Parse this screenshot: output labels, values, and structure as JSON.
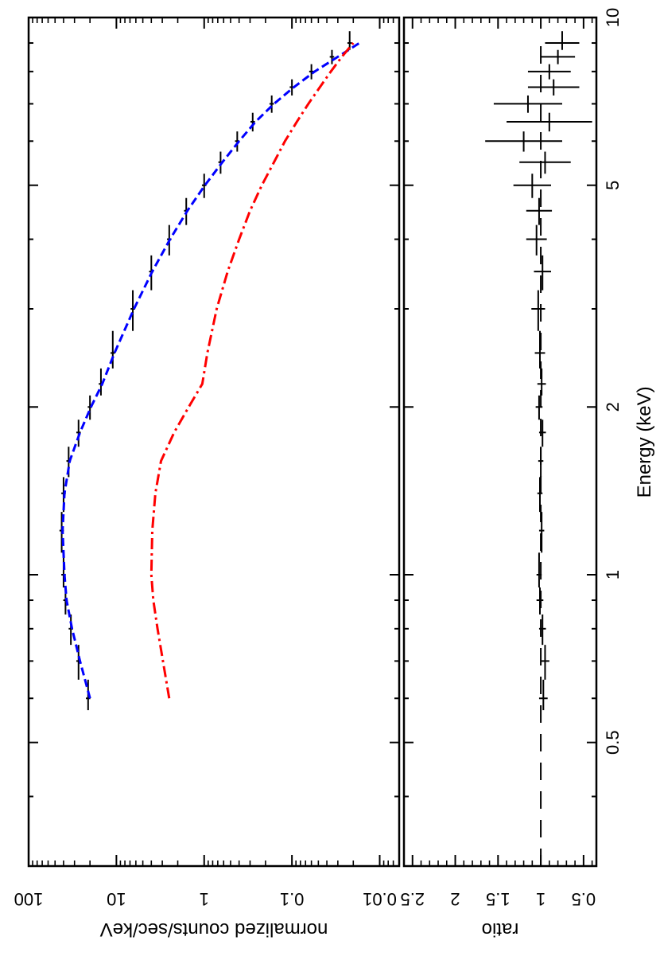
{
  "chart_data": [
    {
      "type": "scatter",
      "xlabel": "Energy (keV)",
      "ylabel": "normalized counts/sec/keV",
      "x_scale": "log",
      "y_scale": "log",
      "xlim": [
        0.3,
        10
      ],
      "ylim": [
        0.006,
        100
      ],
      "x_ticks": [
        0.5,
        1,
        2,
        5,
        10
      ],
      "x_tick_labels": [
        "0.5",
        "1",
        "2",
        "5",
        "10"
      ],
      "y_ticks": [
        100,
        10,
        1,
        0.1,
        0.01
      ],
      "y_tick_labels": [
        "100",
        "10",
        "1",
        "0.1",
        "0.01"
      ],
      "series": [
        {
          "kind": "data",
          "color": "#000000",
          "style": "crosses",
          "x": [
            0.6,
            0.7,
            0.8,
            0.9,
            1.0,
            1.2,
            1.4,
            1.6,
            1.8,
            2.0,
            2.2,
            2.5,
            3.0,
            3.5,
            4.0,
            4.5,
            5.0,
            5.5,
            6.0,
            6.5,
            7.0,
            7.5,
            8.0,
            8.5,
            9.0
          ],
          "y": [
            21,
            27,
            33,
            38,
            40,
            42,
            40,
            35,
            27,
            20,
            15,
            11,
            6.5,
            4.0,
            2.5,
            1.6,
            1.0,
            0.65,
            0.42,
            0.28,
            0.17,
            0.1,
            0.06,
            0.035,
            0.022
          ]
        },
        {
          "kind": "model",
          "color": "#0000ff",
          "style": "dash",
          "x": [
            0.6,
            0.7,
            0.8,
            0.9,
            1.0,
            1.2,
            1.4,
            1.6,
            1.8,
            2.0,
            2.2,
            2.5,
            3.0,
            3.5,
            4.0,
            4.5,
            5.0,
            5.5,
            6.0,
            6.5,
            7.0,
            7.5,
            8.0,
            8.5,
            9.0
          ],
          "y": [
            20,
            26,
            32,
            37,
            39,
            41,
            39,
            34,
            26,
            19.5,
            14.5,
            10.5,
            6.3,
            3.9,
            2.45,
            1.55,
            0.98,
            0.62,
            0.4,
            0.26,
            0.16,
            0.095,
            0.055,
            0.03,
            0.017
          ]
        },
        {
          "kind": "model-component",
          "color": "#ff0000",
          "style": "dash-dot",
          "x": [
            0.6,
            0.7,
            0.8,
            0.9,
            1.0,
            1.2,
            1.4,
            1.6,
            1.8,
            2.0,
            2.2,
            2.5,
            3.0,
            3.5,
            4.0,
            4.5,
            5.0,
            5.5,
            6.0,
            6.5,
            7.0,
            7.5,
            8.0,
            8.5,
            9.0
          ],
          "y": [
            2.5,
            2.95,
            3.4,
            3.8,
            4.0,
            3.9,
            3.6,
            3.1,
            2.2,
            1.5,
            1.05,
            0.92,
            0.72,
            0.54,
            0.4,
            0.3,
            0.22,
            0.16,
            0.12,
            0.088,
            0.065,
            0.048,
            0.036,
            0.027,
            0.02
          ]
        }
      ]
    },
    {
      "type": "scatter",
      "xlabel": "Energy (keV)",
      "ylabel": "ratio",
      "x_scale": "log",
      "xlim": [
        0.3,
        10
      ],
      "ylim": [
        0.35,
        2.6
      ],
      "x_ticks": [
        0.5,
        1,
        2,
        5,
        10
      ],
      "x_tick_labels": [
        "0.5",
        "1",
        "2",
        "5",
        "10"
      ],
      "y_ticks": [
        0.5,
        1,
        1.5,
        2,
        2.5
      ],
      "y_tick_labels": [
        "0.5",
        "1",
        "1.5",
        "2",
        "2.5"
      ],
      "reference_line": 1,
      "series": [
        {
          "kind": "ratio",
          "color": "#000000",
          "style": "crosses",
          "x": [
            0.6,
            0.7,
            0.8,
            0.9,
            1.0,
            1.2,
            1.4,
            1.6,
            1.8,
            2.0,
            2.2,
            2.5,
            3.0,
            3.5,
            4.0,
            4.5,
            5.0,
            5.5,
            6.0,
            6.5,
            7.0,
            7.5,
            8.0,
            8.5,
            9.0
          ],
          "y": [
            0.97,
            0.95,
            0.98,
            1.01,
            1.02,
            0.99,
            1.01,
            1.0,
            0.98,
            1.02,
            0.99,
            1.01,
            1.03,
            0.98,
            1.05,
            1.02,
            1.1,
            0.95,
            1.2,
            0.9,
            1.15,
            0.85,
            0.9,
            0.8,
            0.75
          ],
          "err": [
            0.05,
            0.05,
            0.04,
            0.04,
            0.03,
            0.03,
            0.03,
            0.03,
            0.04,
            0.04,
            0.05,
            0.06,
            0.08,
            0.1,
            0.12,
            0.15,
            0.22,
            0.3,
            0.45,
            0.5,
            0.4,
            0.3,
            0.25,
            0.2,
            0.2
          ]
        }
      ]
    }
  ]
}
